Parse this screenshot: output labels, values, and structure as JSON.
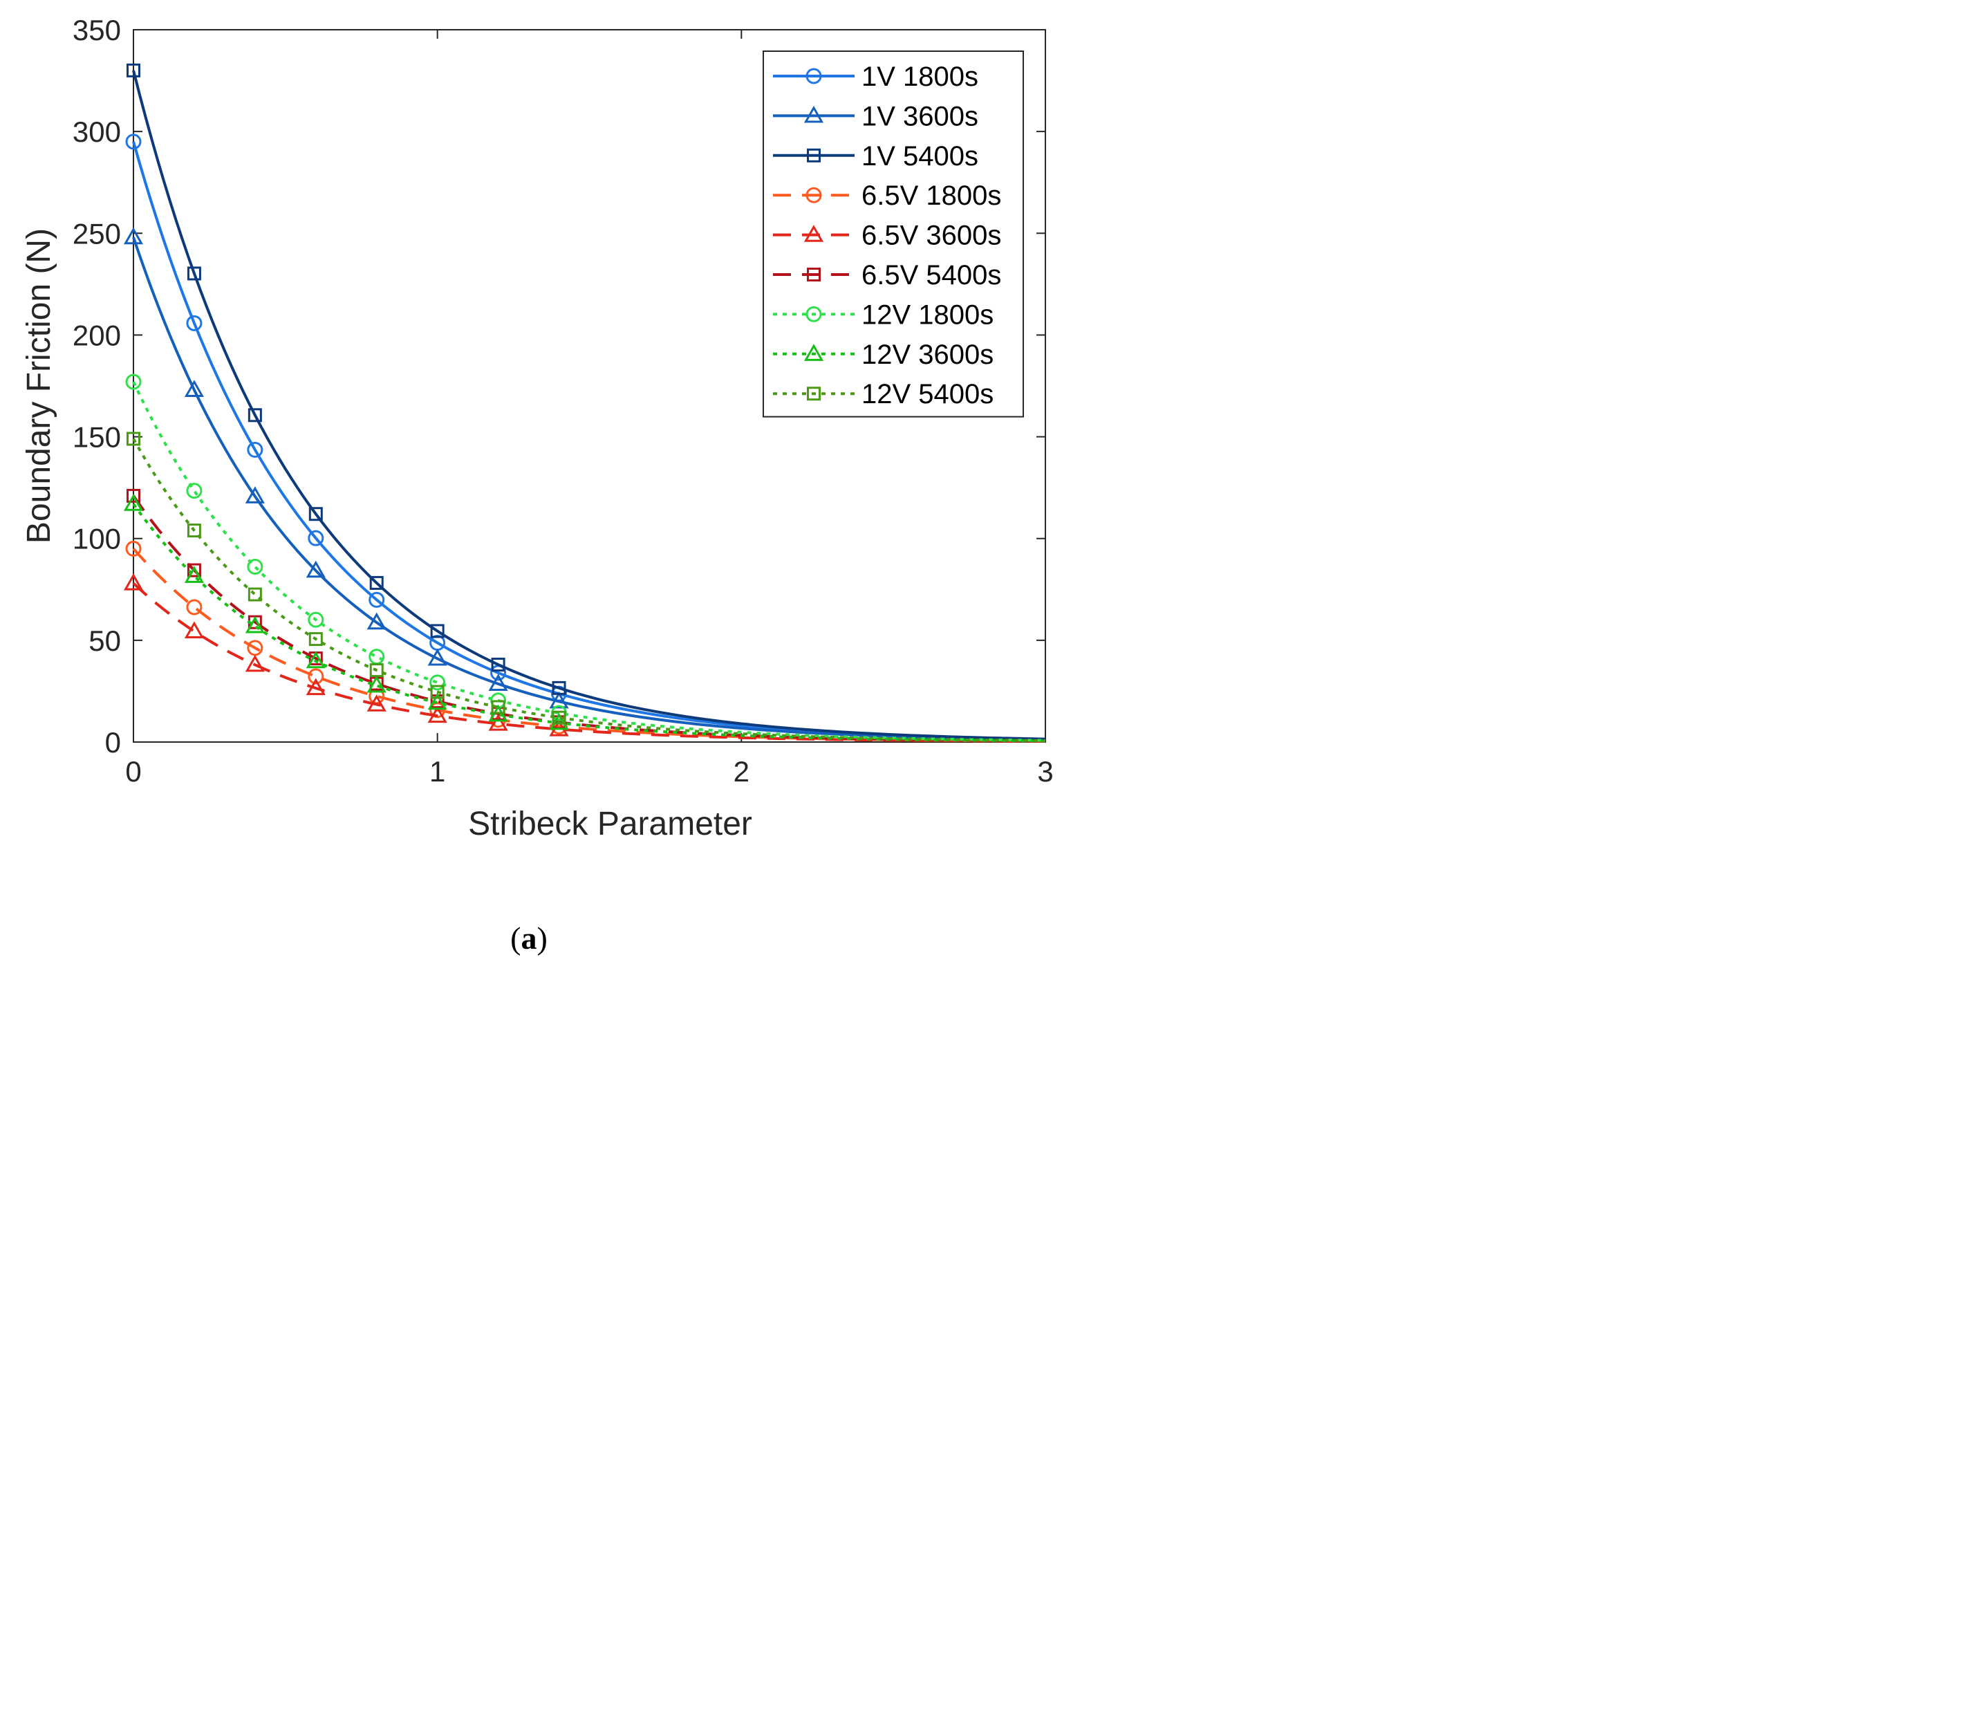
{
  "chart_data": {
    "type": "line",
    "title": "",
    "xlabel": "Stribeck Parameter",
    "ylabel": "Boundary Friction (N)",
    "xlim": [
      0,
      3
    ],
    "ylim": [
      0,
      350
    ],
    "xticks": [
      0,
      1,
      2,
      3
    ],
    "yticks": [
      0,
      50,
      100,
      150,
      200,
      250,
      300,
      350
    ],
    "grid": false,
    "legend_position": "top-right",
    "marker_x": [
      0,
      0.2,
      0.4,
      0.6,
      0.8,
      1.0,
      1.2,
      1.4
    ],
    "series": [
      {
        "name": "1V 1800s",
        "y0": 295,
        "decay": 1.8,
        "color": "#1f77e6",
        "line": "solid",
        "marker": "circle"
      },
      {
        "name": "1V 3600s",
        "y0": 248,
        "decay": 1.8,
        "color": "#1560bd",
        "line": "solid",
        "marker": "triangle"
      },
      {
        "name": "1V 5400s",
        "y0": 330,
        "decay": 1.8,
        "color": "#0d3a7a",
        "line": "solid",
        "marker": "square"
      },
      {
        "name": "6.5V 1800s",
        "y0": 95,
        "decay": 1.8,
        "color": "#ff5a1f",
        "line": "dashed",
        "marker": "circle"
      },
      {
        "name": "6.5V 3600s",
        "y0": 78,
        "decay": 1.8,
        "color": "#e3261b",
        "line": "dashed",
        "marker": "triangle"
      },
      {
        "name": "6.5V 5400s",
        "y0": 121,
        "decay": 1.8,
        "color": "#b3121b",
        "line": "dashed",
        "marker": "square"
      },
      {
        "name": "12V 1800s",
        "y0": 177,
        "decay": 1.8,
        "color": "#2ee04a",
        "line": "dotted",
        "marker": "circle"
      },
      {
        "name": "12V 3600s",
        "y0": 117,
        "decay": 1.8,
        "color": "#16bf16",
        "line": "dotted",
        "marker": "triangle"
      },
      {
        "name": "12V 5400s",
        "y0": 149,
        "decay": 1.8,
        "color": "#4a9a17",
        "line": "dotted",
        "marker": "square"
      }
    ]
  },
  "caption": {
    "open": "(",
    "letter": "a",
    "close": ")"
  }
}
